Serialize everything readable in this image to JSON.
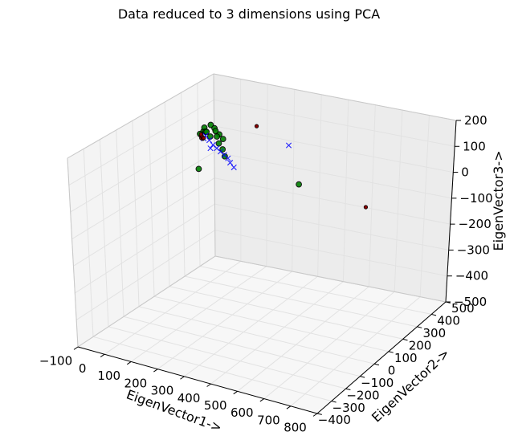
{
  "chart_data": {
    "type": "scatter",
    "projection": "3d",
    "title": "Data reduced to 3 dimensions using PCA",
    "xlabel": "EigenVector1->",
    "ylabel": "EigenVector2->",
    "zlabel": "EigenVector3->",
    "xlim": [
      -100,
      800
    ],
    "ylim": [
      -400,
      500
    ],
    "zlim": [
      -500,
      200
    ],
    "x_ticks": [
      "−100",
      "0",
      "100",
      "200",
      "300",
      "400",
      "500",
      "600",
      "700",
      "800"
    ],
    "y_ticks": [
      "−400",
      "−300",
      "−200",
      "−100",
      "0",
      "100",
      "200",
      "300",
      "400",
      "500"
    ],
    "z_ticks": [
      "−500",
      "−400",
      "−300",
      "−200",
      "−100",
      "0",
      "100",
      "200"
    ],
    "grid": true,
    "series": [
      {
        "marker": "circle",
        "color": "#008000",
        "points": [
          [
            280,
            400,
            -110
          ],
          [
            180,
            -60,
            100
          ],
          [
            -80,
            400,
            20
          ],
          [
            -70,
            390,
            40
          ],
          [
            -40,
            380,
            60
          ],
          [
            -20,
            370,
            55
          ],
          [
            -10,
            360,
            50
          ],
          [
            -60,
            380,
            30
          ],
          [
            -50,
            370,
            35
          ],
          [
            -30,
            360,
            25
          ],
          [
            -90,
            395,
            10
          ],
          [
            10,
            350,
            45
          ],
          [
            -5,
            360,
            30
          ],
          [
            30,
            340,
            35
          ],
          [
            20,
            330,
            20
          ],
          [
            40,
            320,
            5
          ],
          [
            60,
            300,
            -10
          ]
        ]
      },
      {
        "marker": "x",
        "color": "#0000ff",
        "points": [
          [
            360,
            200,
            130
          ],
          [
            -60,
            380,
            15
          ],
          [
            -40,
            370,
            5
          ],
          [
            -20,
            360,
            -5
          ],
          [
            0,
            350,
            -10
          ],
          [
            20,
            340,
            -15
          ],
          [
            40,
            330,
            -20
          ],
          [
            60,
            320,
            -25
          ],
          [
            80,
            300,
            -30
          ],
          [
            100,
            290,
            -40
          ],
          [
            -70,
            385,
            0
          ],
          [
            -30,
            360,
            -20
          ]
        ]
      },
      {
        "marker": "dot",
        "color": "#8b0000",
        "points": [
          [
            -90,
            400,
            0
          ],
          [
            -85,
            395,
            -5
          ],
          [
            -80,
            390,
            5
          ],
          [
            -75,
            388,
            -3
          ],
          [
            -88,
            398,
            8
          ],
          [
            -70,
            385,
            2
          ],
          [
            120,
            400,
            80
          ],
          [
            720,
            80,
            20
          ]
        ]
      }
    ]
  }
}
